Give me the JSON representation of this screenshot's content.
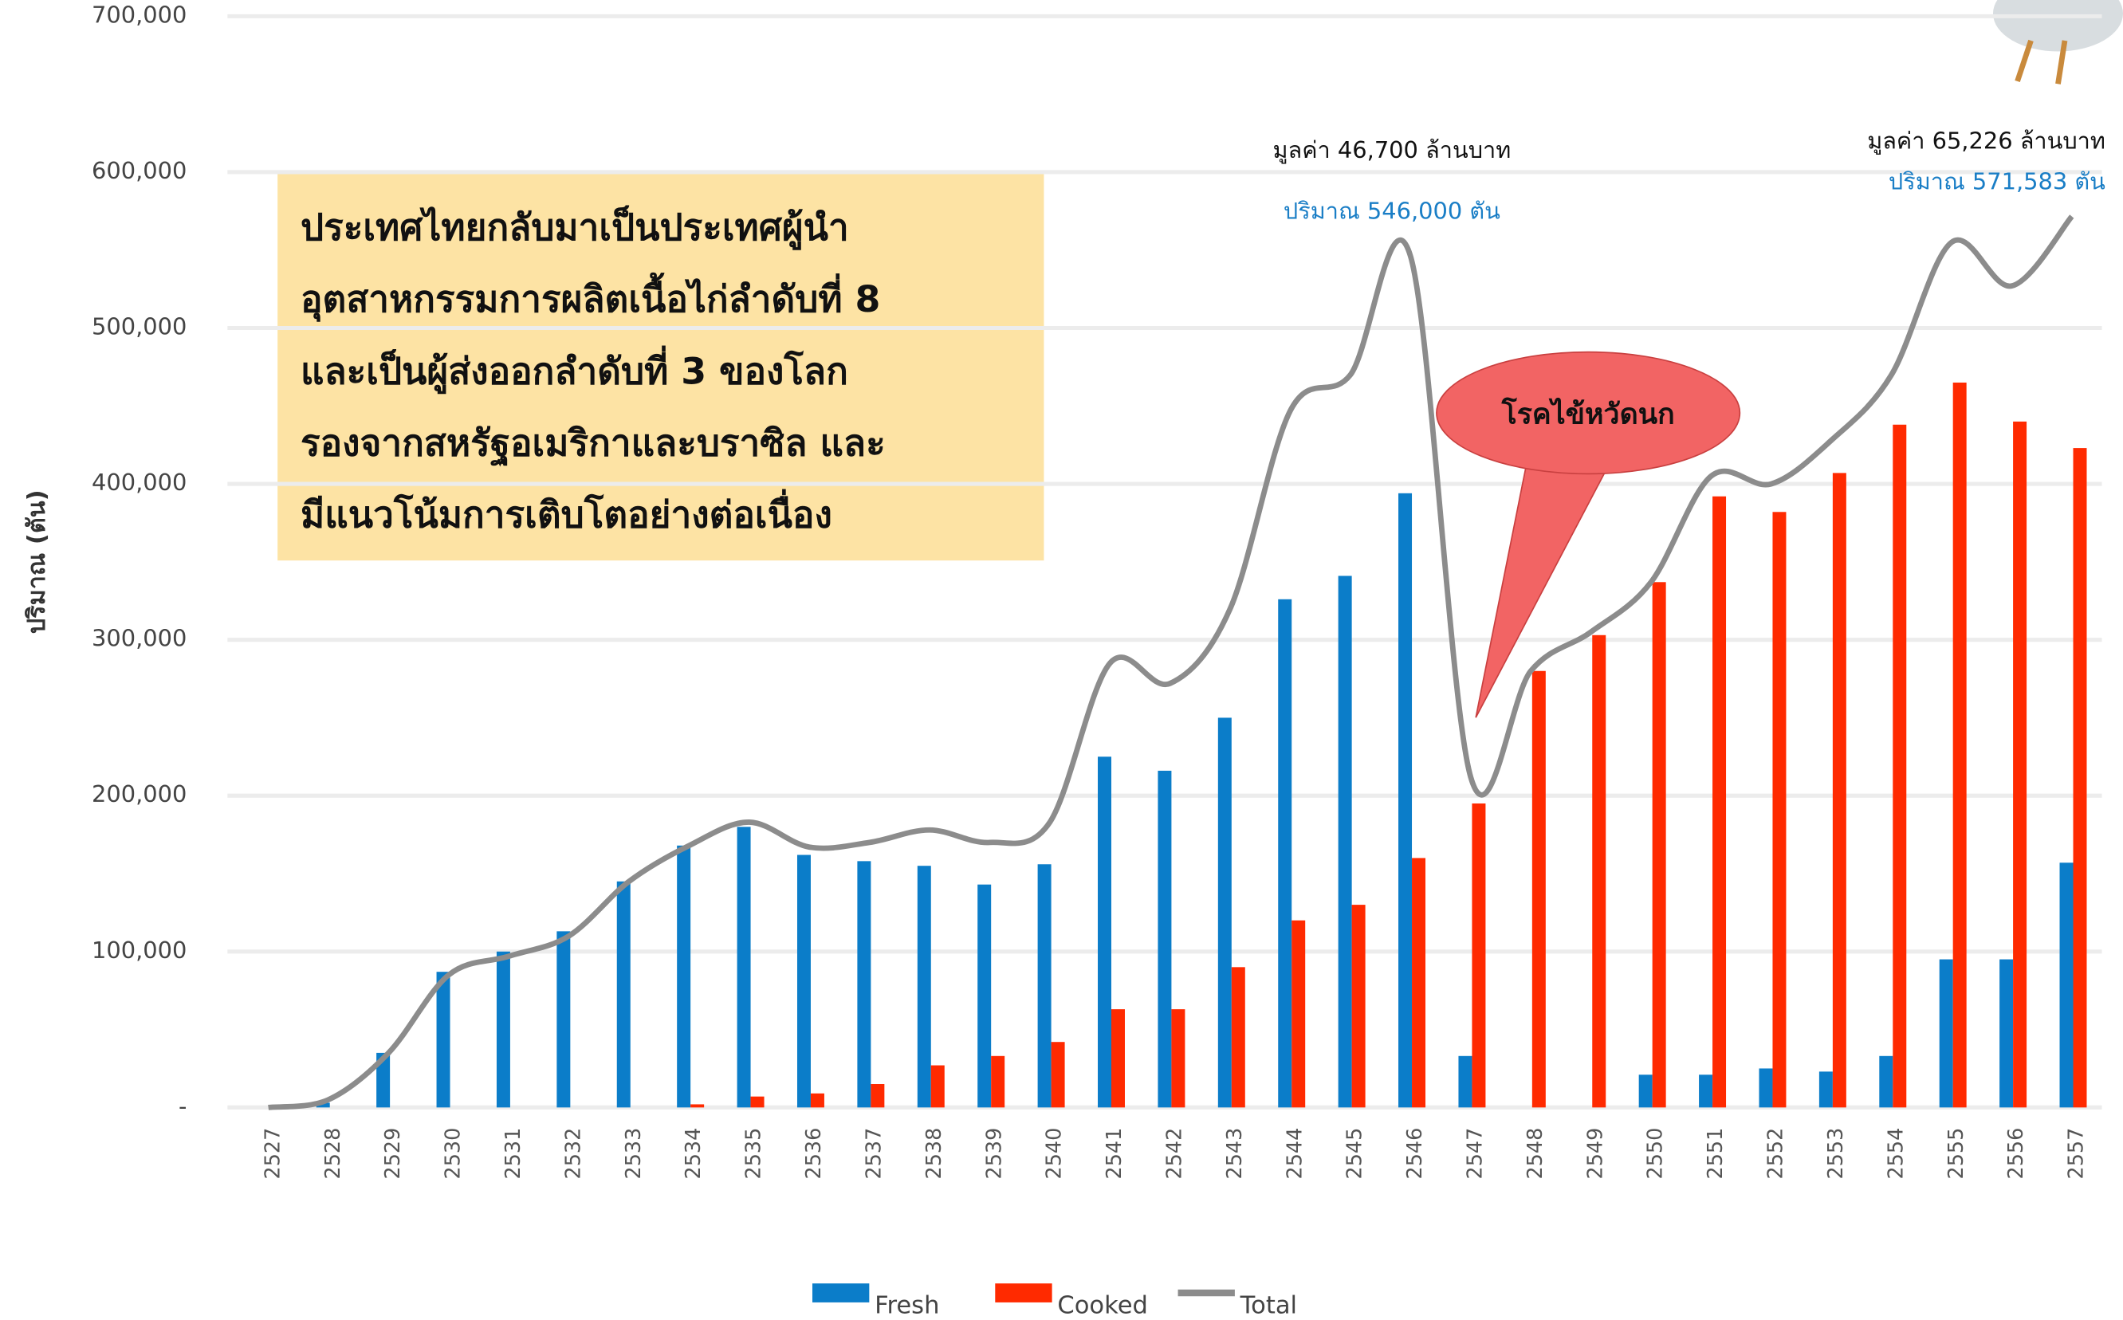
{
  "chart_data": {
    "type": "bar",
    "y_label": "ปริมาณ (ตัน)",
    "categories": [
      "2527",
      "2528",
      "2529",
      "2530",
      "2531",
      "2532",
      "2533",
      "2534",
      "2535",
      "2536",
      "2537",
      "2538",
      "2539",
      "2540",
      "2541",
      "2542",
      "2543",
      "2544",
      "2545",
      "2546",
      "2547",
      "2548",
      "2549",
      "2550",
      "2551",
      "2552",
      "2553",
      "2554",
      "2555",
      "2556",
      "2557"
    ],
    "series": [
      {
        "name": "Fresh",
        "type": "bar",
        "color": "#0b7dc9",
        "values": [
          0,
          3000,
          35000,
          87000,
          100000,
          113000,
          145000,
          168000,
          180000,
          162000,
          158000,
          155000,
          143000,
          156000,
          225000,
          216000,
          250000,
          326000,
          341000,
          394000,
          33000,
          0,
          0,
          21000,
          21000,
          25000,
          23000,
          33000,
          95000,
          95000,
          157000
        ]
      },
      {
        "name": "Cooked",
        "type": "bar",
        "color": "#ff2a00",
        "values": [
          0,
          0,
          0,
          0,
          0,
          0,
          0,
          2000,
          7000,
          9000,
          15000,
          27000,
          33000,
          42000,
          63000,
          63000,
          90000,
          120000,
          130000,
          160000,
          195000,
          280000,
          303000,
          337000,
          392000,
          382000,
          407000,
          438000,
          465000,
          440000,
          423000
        ]
      },
      {
        "name": "Total",
        "type": "line",
        "color": "#8c8c8c",
        "values": [
          0,
          5000,
          35000,
          85000,
          97000,
          110000,
          145000,
          168000,
          183000,
          167000,
          170000,
          178000,
          170000,
          183000,
          285000,
          272000,
          320000,
          447000,
          470000,
          546000,
          212000,
          280000,
          305000,
          337000,
          405000,
          400000,
          428000,
          470000,
          555000,
          527000,
          571583
        ]
      }
    ],
    "ylim": [
      0,
      700000
    ],
    "yticks": [
      {
        "value": 0,
        "label": "-"
      },
      {
        "value": 100000,
        "label": "100,000"
      },
      {
        "value": 200000,
        "label": "200,000"
      },
      {
        "value": 300000,
        "label": "300,000"
      },
      {
        "value": 400000,
        "label": "400,000"
      },
      {
        "value": 500000,
        "label": "500,000"
      },
      {
        "value": 600000,
        "label": "600,000"
      },
      {
        "value": 700000,
        "label": "700,000"
      }
    ],
    "grid": true,
    "legend": "bottom",
    "annotations": [
      {
        "text": "มูลค่า 46,700 ล้านบาท",
        "color": "#111111"
      },
      {
        "text": "ปริมาณ 546,000 ตัน",
        "color": "#1a7ec6"
      },
      {
        "text": "มูลค่า 65,226 ล้านบาท",
        "color": "#111111"
      },
      {
        "text": "ปริมาณ 571,583 ตัน",
        "color": "#1a7ec6"
      }
    ],
    "text_box": [
      "ประเทศไทยกลับมาเป็นประเทศผู้นำ",
      "อุตสาหกรรมการผลิตเนื้อไก่ลำดับที่ 8",
      "และเป็นผู้ส่งออกลำดับที่ 3 ของโลก",
      "รองจากสหรัฐอเมริกาและบราซิล และ",
      "มีแนวโน้มการเติบโตอย่างต่อเนื่อง"
    ],
    "callout": "โรคไข้หวัดนก"
  }
}
